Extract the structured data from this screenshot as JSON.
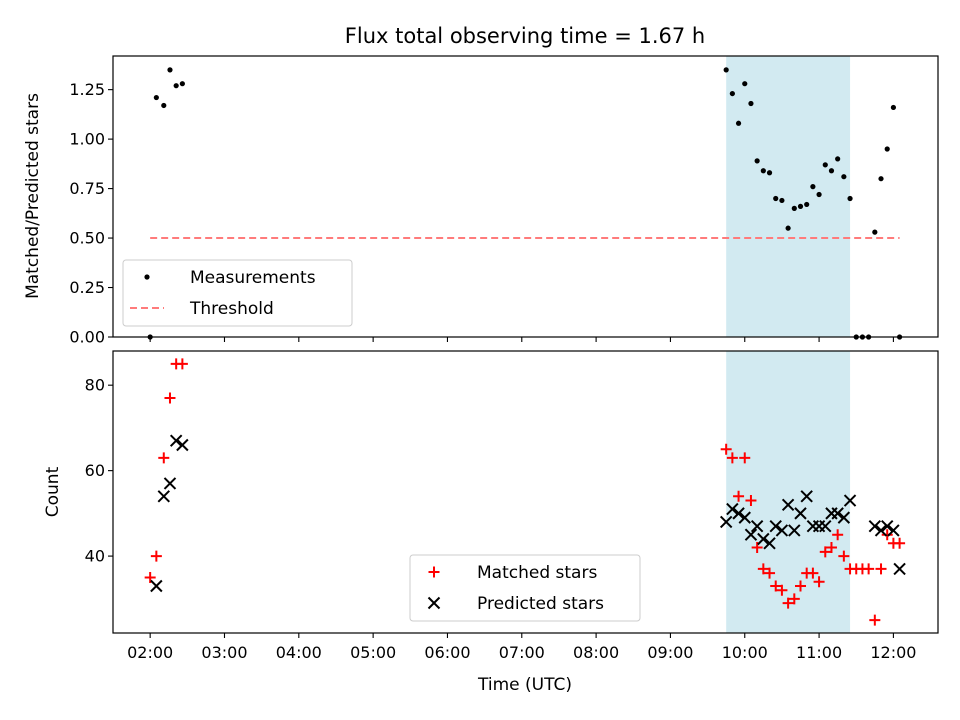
{
  "chart_data": [
    {
      "type": "scatter",
      "title": "Flux total observing time = 1.67 h",
      "ylabel": "Matched/Predicted stars",
      "xlim": [
        "01:30",
        "12:36"
      ],
      "ylim": [
        0,
        1.42
      ],
      "yticks": [
        0.0,
        0.25,
        0.5,
        0.75,
        1.0,
        1.25
      ],
      "ytick_labels": [
        "0.00",
        "0.25",
        "0.50",
        "0.75",
        "1.00",
        "1.25"
      ],
      "grid": false,
      "legend_position": "lower-left",
      "shaded_interval": {
        "start": "09:45",
        "end": "11:25",
        "color": "#add8e6"
      },
      "series": [
        {
          "name": "Measurements",
          "marker": "dot",
          "color": "#000000",
          "points": [
            [
              "02:00",
              0.0
            ],
            [
              "02:05",
              1.21
            ],
            [
              "02:11",
              1.17
            ],
            [
              "02:16",
              1.35
            ],
            [
              "02:21",
              1.27
            ],
            [
              "02:26",
              1.28
            ],
            [
              "09:45",
              1.35
            ],
            [
              "09:50",
              1.23
            ],
            [
              "09:55",
              1.08
            ],
            [
              "10:00",
              1.28
            ],
            [
              "10:05",
              1.18
            ],
            [
              "10:10",
              0.89
            ],
            [
              "10:15",
              0.84
            ],
            [
              "10:20",
              0.83
            ],
            [
              "10:25",
              0.7
            ],
            [
              "10:30",
              0.69
            ],
            [
              "10:35",
              0.55
            ],
            [
              "10:40",
              0.65
            ],
            [
              "10:45",
              0.66
            ],
            [
              "10:50",
              0.67
            ],
            [
              "10:55",
              0.76
            ],
            [
              "11:00",
              0.72
            ],
            [
              "11:05",
              0.87
            ],
            [
              "11:10",
              0.84
            ],
            [
              "11:15",
              0.9
            ],
            [
              "11:20",
              0.81
            ],
            [
              "11:25",
              0.7
            ],
            [
              "11:30",
              0.0
            ],
            [
              "11:35",
              0.0
            ],
            [
              "11:40",
              0.0
            ],
            [
              "11:45",
              0.53
            ],
            [
              "11:50",
              0.8
            ],
            [
              "11:55",
              0.95
            ],
            [
              "12:00",
              1.16
            ],
            [
              "12:05",
              0.0
            ]
          ]
        },
        {
          "name": "Threshold",
          "style": "dashed-line",
          "color": "#ff7b7b",
          "x": [
            "02:00",
            "12:05"
          ],
          "y": [
            0.5,
            0.5
          ]
        }
      ]
    },
    {
      "type": "scatter",
      "xlabel": "Time (UTC)",
      "ylabel": "Count",
      "xlim": [
        "01:30",
        "12:36"
      ],
      "ylim": [
        22,
        88
      ],
      "xtick_labels": [
        "02:00",
        "03:00",
        "04:00",
        "05:00",
        "06:00",
        "07:00",
        "08:00",
        "09:00",
        "10:00",
        "11:00",
        "12:00"
      ],
      "yticks": [
        40,
        60,
        80
      ],
      "ytick_labels": [
        "40",
        "60",
        "80"
      ],
      "grid": false,
      "legend_position": "lower-center",
      "shaded_interval": {
        "start": "09:45",
        "end": "11:25",
        "color": "#add8e6"
      },
      "series": [
        {
          "name": "Matched stars",
          "marker": "plus",
          "color": "#ff0000",
          "points": [
            [
              "02:00",
              35
            ],
            [
              "02:05",
              40
            ],
            [
              "02:11",
              63
            ],
            [
              "02:16",
              77
            ],
            [
              "02:21",
              85
            ],
            [
              "02:26",
              85
            ],
            [
              "09:45",
              65
            ],
            [
              "09:50",
              63
            ],
            [
              "09:55",
              54
            ],
            [
              "10:00",
              63
            ],
            [
              "10:05",
              53
            ],
            [
              "10:10",
              42
            ],
            [
              "10:15",
              37
            ],
            [
              "10:20",
              36
            ],
            [
              "10:25",
              33
            ],
            [
              "10:30",
              32
            ],
            [
              "10:35",
              29
            ],
            [
              "10:40",
              30
            ],
            [
              "10:45",
              33
            ],
            [
              "10:50",
              36
            ],
            [
              "10:55",
              36
            ],
            [
              "11:00",
              34
            ],
            [
              "11:05",
              41
            ],
            [
              "11:10",
              42
            ],
            [
              "11:15",
              45
            ],
            [
              "11:20",
              40
            ],
            [
              "11:25",
              37
            ],
            [
              "11:30",
              37
            ],
            [
              "11:35",
              37
            ],
            [
              "11:40",
              37
            ],
            [
              "11:45",
              25
            ],
            [
              "11:50",
              37
            ],
            [
              "11:55",
              45
            ],
            [
              "12:00",
              43
            ],
            [
              "12:05",
              43
            ]
          ]
        },
        {
          "name": "Predicted stars",
          "marker": "x",
          "color": "#000000",
          "points": [
            [
              "02:05",
              33
            ],
            [
              "02:11",
              54
            ],
            [
              "02:16",
              57
            ],
            [
              "02:21",
              67
            ],
            [
              "02:26",
              66
            ],
            [
              "09:45",
              48
            ],
            [
              "09:50",
              51
            ],
            [
              "09:55",
              50
            ],
            [
              "10:00",
              49
            ],
            [
              "10:05",
              45
            ],
            [
              "10:10",
              47
            ],
            [
              "10:15",
              44
            ],
            [
              "10:20",
              43
            ],
            [
              "10:25",
              47
            ],
            [
              "10:30",
              46
            ],
            [
              "10:35",
              52
            ],
            [
              "10:40",
              46
            ],
            [
              "10:45",
              50
            ],
            [
              "10:50",
              54
            ],
            [
              "10:55",
              47
            ],
            [
              "11:00",
              47
            ],
            [
              "11:05",
              47
            ],
            [
              "11:10",
              50
            ],
            [
              "11:15",
              50
            ],
            [
              "11:20",
              49
            ],
            [
              "11:25",
              53
            ],
            [
              "11:45",
              47
            ],
            [
              "11:50",
              46
            ],
            [
              "11:55",
              47
            ],
            [
              "12:00",
              46
            ],
            [
              "12:05",
              37
            ]
          ]
        }
      ]
    }
  ]
}
